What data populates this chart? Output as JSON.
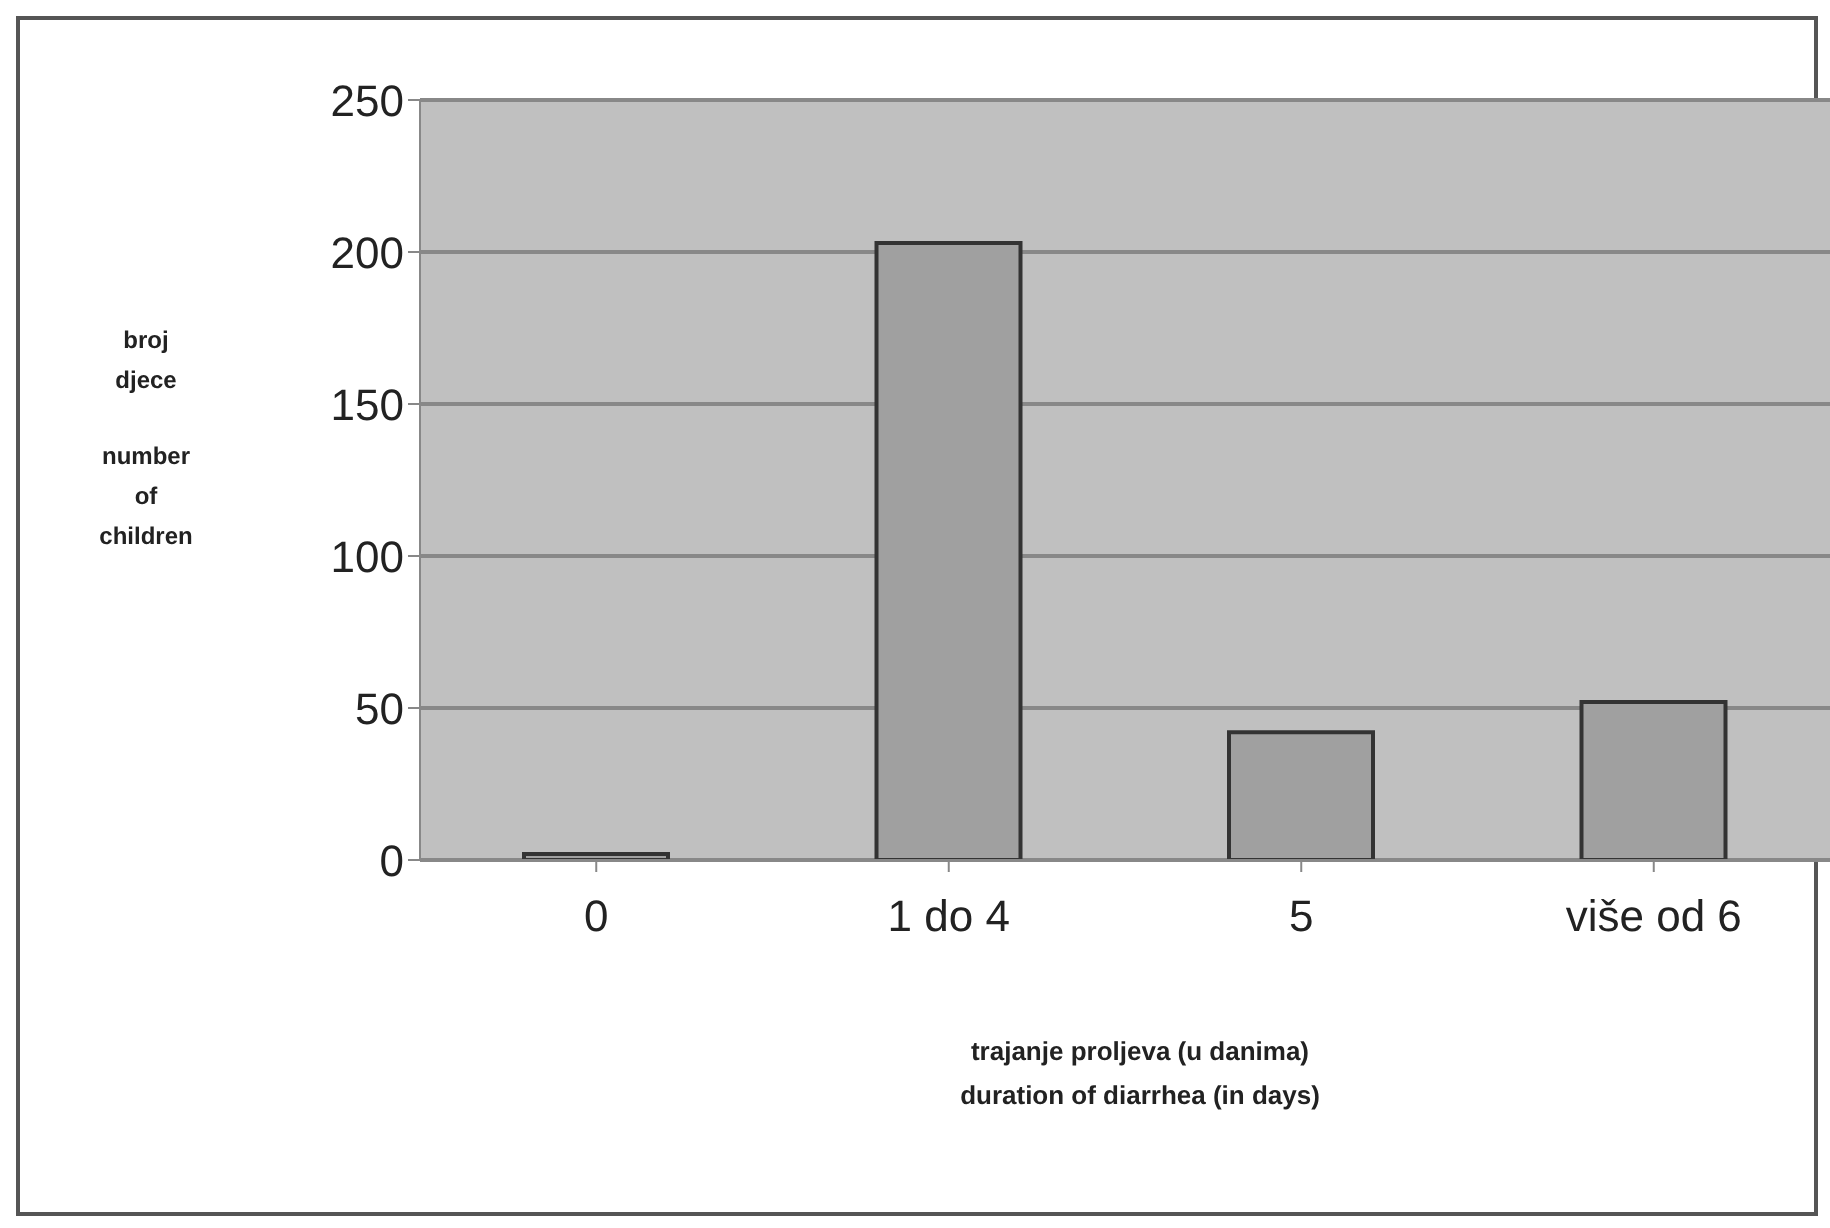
{
  "chart_data": {
    "type": "bar",
    "categories": [
      "0",
      "1 do 4",
      "5",
      "više od 6"
    ],
    "values": [
      2,
      203,
      42,
      52
    ],
    "color": "#a0a0a0",
    "ylim": [
      0,
      250
    ],
    "yticks": [
      0,
      50,
      100,
      150,
      200,
      250
    ],
    "ylabel": "broj djece\nnumber of children",
    "xlabel": "trajanje proljeva (u danima)\nduration of diarrhea (in days)",
    "grid": "y",
    "legend": false
  }
}
